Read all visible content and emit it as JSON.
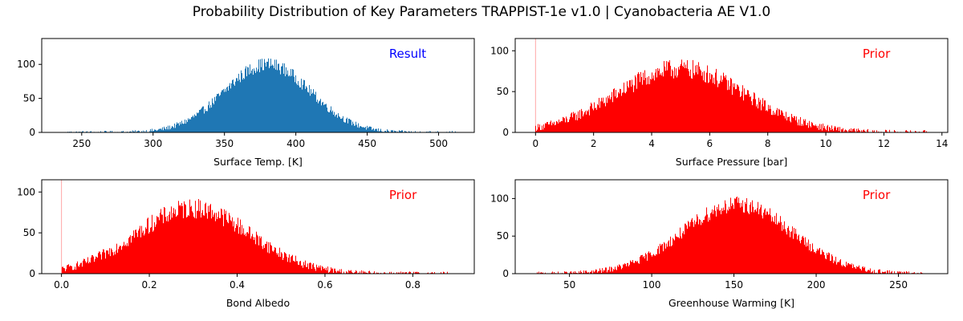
{
  "figure": {
    "title": "Probability Distribution of Key Parameters  TRAPPIST-1e v1.0 | Cyanobacteria AE V1.0"
  },
  "chart_data": [
    {
      "type": "bar",
      "subtype": "histogram",
      "xlabel": "Surface Temp. [K]",
      "ylabel": "",
      "xlim": [
        222,
        525
      ],
      "ylim": [
        0,
        138
      ],
      "xticks": [
        250,
        300,
        350,
        400,
        450,
        500
      ],
      "yticks": [
        0,
        50,
        100
      ],
      "annotation": "Result",
      "annotation_color": "#0000ff",
      "color": "#1f77b4",
      "distribution": {
        "mean": 380,
        "std": 30,
        "peak": 100,
        "min": 240,
        "max": 512,
        "noise": 10,
        "spike_at_min": 0
      }
    },
    {
      "type": "bar",
      "subtype": "histogram",
      "xlabel": "Surface Pressure [bar]",
      "ylabel": "",
      "xlim": [
        -0.7,
        14.2
      ],
      "ylim": [
        0,
        115
      ],
      "xticks": [
        0,
        2,
        4,
        6,
        8,
        10,
        12,
        14
      ],
      "yticks": [
        0,
        50,
        100
      ],
      "annotation": "Prior",
      "annotation_color": "#ff0000",
      "color": "#ff0000",
      "distribution": {
        "mean": 5,
        "std": 2.2,
        "peak": 78,
        "min": 0,
        "max": 13.5,
        "noise": 12,
        "spike_at_min": 115
      }
    },
    {
      "type": "bar",
      "subtype": "histogram",
      "xlabel": "Bond Albedo",
      "ylabel": "",
      "xlim": [
        -0.045,
        0.94
      ],
      "ylim": [
        0,
        115
      ],
      "xticks": [
        0.0,
        0.2,
        0.4,
        0.6,
        0.8
      ],
      "yticks": [
        0,
        50,
        100
      ],
      "annotation": "Prior",
      "annotation_color": "#ff0000",
      "color": "#ff0000",
      "distribution": {
        "mean": 0.3,
        "std": 0.13,
        "peak": 80,
        "min": 0,
        "max": 0.88,
        "noise": 12,
        "spike_at_min": 115
      }
    },
    {
      "type": "bar",
      "subtype": "histogram",
      "xlabel": "Greenhouse Warming [K]",
      "ylabel": "",
      "xlim": [
        17,
        280
      ],
      "ylim": [
        0,
        125
      ],
      "xticks": [
        50,
        100,
        150,
        200,
        250
      ],
      "yticks": [
        0,
        50,
        100
      ],
      "annotation": "Prior",
      "annotation_color": "#ff0000",
      "color": "#ff0000",
      "distribution": {
        "mean": 152,
        "std": 33,
        "peak": 92,
        "min": 30,
        "max": 265,
        "noise": 11,
        "spike_at_min": 0
      }
    }
  ]
}
